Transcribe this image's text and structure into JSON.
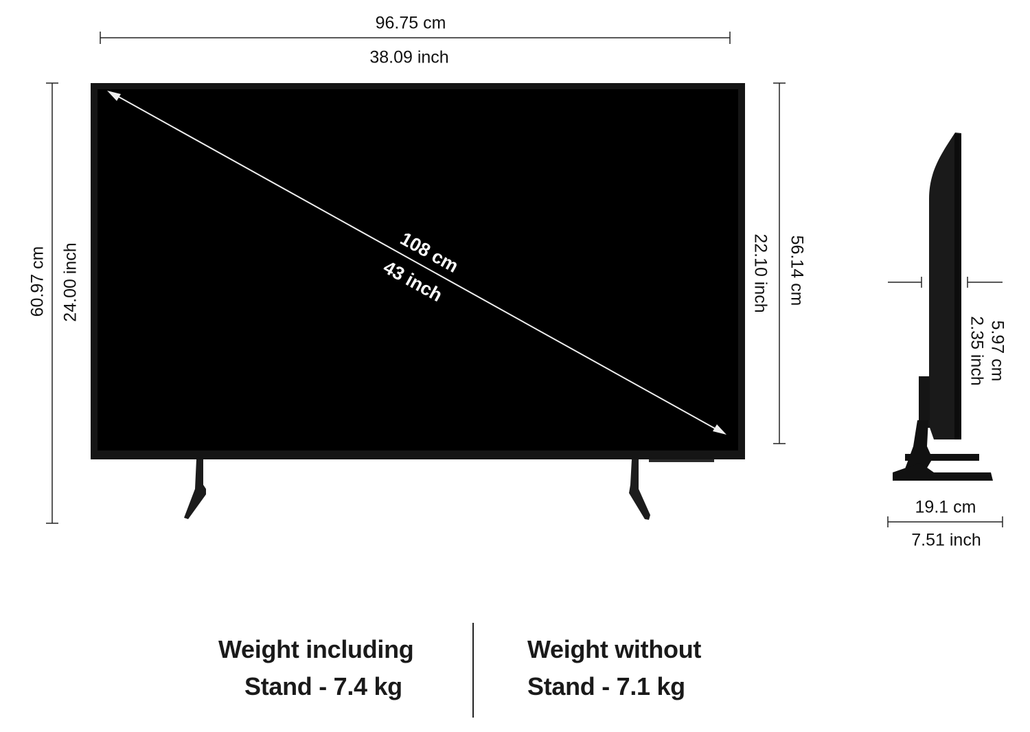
{
  "dimensions": {
    "width_cm": "96.75 cm",
    "width_inch": "38.09 inch",
    "height_with_stand_cm": "60.97  cm",
    "height_with_stand_inch": "24.00 inch",
    "height_without_stand_inch": "22.10 inch",
    "height_without_stand_cm": "56.14 cm",
    "diagonal_cm": "108 cm",
    "diagonal_inch": "43 inch",
    "depth_cm": "5.97 cm",
    "depth_inch": "2.35 inch",
    "stand_depth_cm": "19.1 cm",
    "stand_depth_inch": "7.51 inch"
  },
  "weights": {
    "with_stand_line1": "Weight including",
    "with_stand_line2": "Stand - 7.4 kg",
    "without_stand_line1": "Weight without",
    "without_stand_line2": "Stand - 7.1 kg"
  },
  "colors": {
    "tv_body": "#0d0d0d",
    "screen": "#000000",
    "lines": "#222222"
  }
}
